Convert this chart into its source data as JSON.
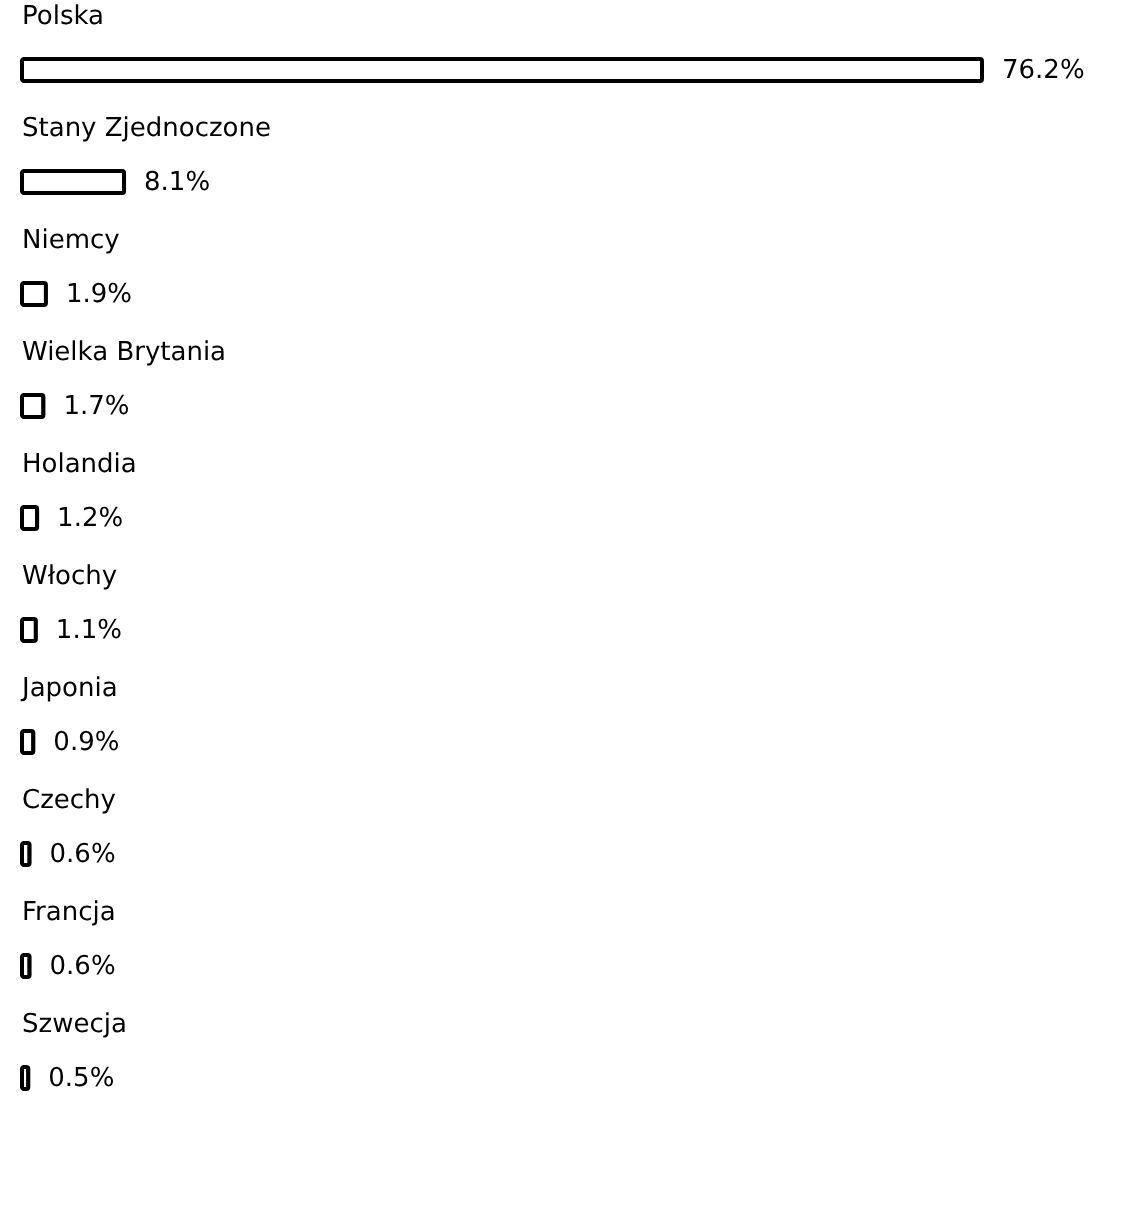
{
  "chart_data": {
    "type": "bar",
    "orientation": "horizontal",
    "categories": [
      "Polska",
      "Stany Zjednoczone",
      "Niemcy",
      "Wielka Brytania",
      "Holandia",
      "Włochy",
      "Japonia",
      "Czechy",
      "Francja",
      "Szwecja"
    ],
    "values": [
      76.2,
      8.1,
      1.9,
      1.7,
      1.2,
      1.1,
      0.9,
      0.6,
      0.6,
      0.5
    ],
    "value_labels": [
      "76.2%",
      "8.1%",
      "1.9%",
      "1.7%",
      "1.2%",
      "1.1%",
      "0.9%",
      "0.6%",
      "0.6%",
      "0.5%"
    ],
    "color": "#000000"
  }
}
